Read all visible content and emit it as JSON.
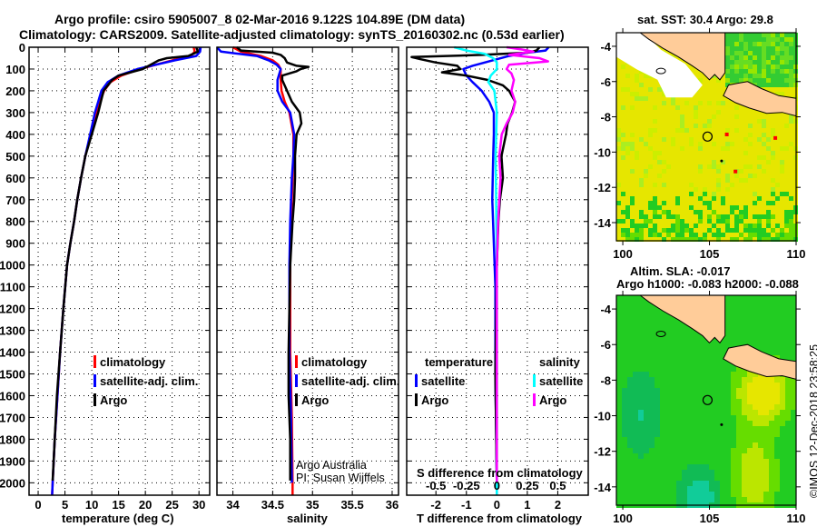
{
  "title": {
    "line1": "Argo profile: csiro 5905007_8 02-Mar-2016 9.122S 104.89E (DM data)",
    "line2": "Climatology: CARS2009. Satellite-adjusted climatology: synTS_20160302.nc (0.53d earlier)"
  },
  "colors": {
    "climatology": "#ff0000",
    "satellite": "#0000ff",
    "argo": "#000000",
    "salinity_satellite": "#00ffff",
    "salinity_argo": "#ff00ff",
    "land": "#ffcc99"
  },
  "legend_profiles": {
    "climatology": "climatology",
    "satellite": "satellite-adj. clim.",
    "argo": "Argo"
  },
  "legend_diff": {
    "temperature_title": "temperature",
    "salinity_title": "salinity",
    "satellite": "satellite",
    "argo": "Argo"
  },
  "credit": {
    "line1": "Argo Australia",
    "line2": "PI: Susan Wijffels"
  },
  "diff_top_label": "S difference from climatology",
  "timestamp": "©IMOS 12-Dec-2018 23:58:25",
  "chart_data": [
    {
      "type": "line",
      "name": "temperature",
      "xlabel": "temperature (deg C)",
      "ylabel": "depth",
      "xlim": [
        -1.7,
        32
      ],
      "ylim": [
        2057,
        0
      ],
      "xticks": [
        0,
        5,
        10,
        15,
        20,
        25,
        30
      ],
      "yticks": [
        0,
        100,
        200,
        300,
        400,
        500,
        600,
        700,
        800,
        900,
        1000,
        1100,
        1200,
        1300,
        1400,
        1500,
        1600,
        1700,
        1800,
        1900,
        2000
      ],
      "series": [
        {
          "name": "climatology",
          "color": "#ff0000",
          "depth": [
            0,
            20,
            40,
            60,
            80,
            100,
            130,
            160,
            200,
            250,
            300,
            400,
            500,
            600,
            700,
            800,
            900,
            1000,
            1200,
            1400,
            1600,
            1800,
            2000,
            2057
          ],
          "values": [
            29.0,
            29.2,
            28.5,
            25,
            22,
            19,
            15.5,
            13.5,
            12.3,
            11.5,
            10.8,
            9.8,
            8.8,
            8.0,
            7.3,
            6.7,
            6.0,
            5.4,
            4.7,
            4.1,
            3.6,
            3.1,
            2.7,
            2.6
          ]
        },
        {
          "name": "satellite-adj. clim.",
          "color": "#0000ff",
          "depth": [
            0,
            20,
            40,
            60,
            80,
            100,
            130,
            160,
            200,
            250,
            300,
            400,
            500,
            600,
            700,
            800,
            900,
            1000,
            1200,
            1400,
            1600,
            1800,
            2000,
            2057
          ],
          "values": [
            30.3,
            30.2,
            29.5,
            25.5,
            22,
            18.5,
            15,
            13,
            11.8,
            11.2,
            10.6,
            9.7,
            8.8,
            8.0,
            7.3,
            6.7,
            6.0,
            5.4,
            4.7,
            4.1,
            3.6,
            3.1,
            2.7,
            2.6
          ]
        },
        {
          "name": "Argo",
          "color": "#000000",
          "depth": [
            0,
            20,
            40,
            50,
            60,
            80,
            100,
            130,
            150,
            200,
            250,
            300,
            400,
            500,
            600,
            700,
            800,
            900,
            1000,
            1200,
            1400,
            1600,
            1800,
            1990
          ],
          "values": [
            29.5,
            29.8,
            28.0,
            24,
            22.5,
            21,
            19.5,
            15.0,
            13.8,
            12.2,
            11.7,
            11.2,
            10.0,
            8.8,
            8.0,
            7.3,
            6.7,
            6.0,
            5.4,
            4.7,
            4.1,
            3.5,
            3.1,
            2.7
          ]
        }
      ]
    },
    {
      "type": "line",
      "name": "salinity",
      "xlabel": "salinity",
      "ylabel": "depth",
      "xlim": [
        33.8,
        36.08
      ],
      "ylim": [
        2057,
        0
      ],
      "xticks": [
        34,
        34.5,
        35,
        35.5,
        36
      ],
      "series": [
        {
          "name": "climatology",
          "color": "#ff0000",
          "depth": [
            0,
            20,
            40,
            60,
            80,
            100,
            150,
            200,
            250,
            300,
            400,
            500,
            600,
            800,
            1000,
            1400,
            1700,
            2000,
            2057
          ],
          "values": [
            34.0,
            34.1,
            34.35,
            34.5,
            34.57,
            34.6,
            34.6,
            34.61,
            34.65,
            34.71,
            34.76,
            34.76,
            34.75,
            34.73,
            34.72,
            34.72,
            34.74,
            34.75,
            34.75
          ]
        },
        {
          "name": "satellite-adj. clim.",
          "color": "#0000ff",
          "depth": [
            0,
            20,
            40,
            60,
            80,
            100,
            150,
            200,
            250,
            300,
            400,
            500,
            600,
            800,
            1000,
            1400,
            1700,
            2000
          ],
          "values": [
            33.8,
            33.85,
            34.3,
            34.45,
            34.55,
            34.6,
            34.56,
            34.56,
            34.62,
            34.72,
            34.77,
            34.76,
            34.74,
            34.72,
            34.71,
            34.71,
            34.73,
            34.74
          ]
        },
        {
          "name": "Argo",
          "color": "#000000",
          "depth": [
            0,
            15,
            25,
            35,
            50,
            70,
            85,
            90,
            100,
            110,
            130,
            150,
            200,
            250,
            300,
            350,
            400,
            500,
            600,
            700,
            800,
            1000,
            1400,
            1600,
            1800,
            1990
          ],
          "values": [
            34.05,
            34.1,
            34.5,
            34.6,
            34.65,
            34.68,
            34.8,
            34.95,
            34.85,
            34.8,
            34.62,
            34.62,
            34.68,
            34.74,
            34.84,
            34.86,
            34.8,
            34.78,
            34.78,
            34.77,
            34.75,
            34.72,
            34.7,
            34.7,
            34.72,
            34.72
          ]
        }
      ]
    },
    {
      "type": "line",
      "name": "difference",
      "xlabel": "T difference from climatology",
      "ylabel": "depth",
      "xlim": [
        -2.96,
        3.0
      ],
      "ylim": [
        2057,
        0
      ],
      "xticks": [
        -2,
        -1,
        0,
        1,
        2
      ],
      "s_xticks": [
        -0.5,
        -0.25,
        0,
        0.25,
        0.5
      ],
      "s_per_t": 0.25,
      "series": [
        {
          "name": "temperature satellite",
          "color": "#0000ff",
          "units": "T",
          "depth": [
            0,
            15,
            25,
            40,
            55,
            70,
            85,
            100,
            130,
            160,
            200,
            250,
            300,
            400,
            500,
            700,
            900,
            1100,
            1500,
            2000,
            2057
          ],
          "values": [
            1.7,
            1.6,
            1.0,
            0.4,
            0,
            -0.4,
            -0.8,
            -1.1,
            -1.0,
            -0.8,
            -0.5,
            -0.25,
            -0.1,
            -0.1,
            -0.12,
            -0.15,
            -0.1,
            -0.05,
            -0.05,
            0,
            0
          ]
        },
        {
          "name": "temperature Argo",
          "color": "#000000",
          "units": "T",
          "depth": [
            0,
            15,
            25,
            35,
            45,
            55,
            70,
            85,
            100,
            115,
            130,
            150,
            175,
            200,
            250,
            300,
            350,
            400,
            500,
            600,
            700,
            800,
            1000,
            1500,
            1990
          ],
          "values": [
            1.4,
            1.3,
            1.0,
            -0.5,
            -2.8,
            -2.5,
            -2.0,
            -1.3,
            -1.2,
            -1.8,
            -1.0,
            -0.3,
            0.2,
            0.4,
            0.6,
            0.5,
            0.35,
            0.3,
            0.15,
            0.2,
            0.1,
            0.05,
            0,
            -0.05,
            0
          ]
        },
        {
          "name": "salinity satellite",
          "color": "#00ffff",
          "units": "S",
          "depth": [
            0,
            15,
            30,
            50,
            70,
            100,
            130,
            160,
            200,
            300,
            500,
            1000,
            2000,
            2057
          ],
          "values": [
            -0.35,
            -0.25,
            -0.1,
            -0.03,
            0,
            0,
            -0.05,
            -0.07,
            -0.02,
            0,
            -0.01,
            0,
            0,
            0
          ]
        },
        {
          "name": "salinity Argo",
          "color": "#ff00ff",
          "units": "S",
          "depth": [
            0,
            10,
            20,
            35,
            50,
            65,
            80,
            100,
            120,
            150,
            200,
            250,
            300,
            350,
            400,
            500,
            600,
            800,
            1000,
            1500,
            2000
          ],
          "values": [
            0.08,
            0.2,
            0.3,
            0.1,
            0.35,
            0.42,
            0.1,
            0.08,
            0.12,
            0.14,
            0.12,
            0.15,
            0.13,
            0.08,
            0.04,
            0.02,
            0.03,
            0.01,
            0.0,
            0.0,
            0.0
          ]
        }
      ]
    },
    {
      "type": "heatmap",
      "name": "sst-map",
      "title": "sat. SST: 30.4 Argo: 29.8",
      "xlim": [
        99.63,
        110
      ],
      "ylim": [
        -15.03,
        -3.23
      ],
      "xticks": [
        100,
        105,
        110
      ],
      "yticks": [
        -4,
        -6,
        -8,
        -10,
        -12,
        -14
      ],
      "float_position": [
        104.89,
        -9.12
      ]
    },
    {
      "type": "heatmap",
      "name": "sla-map",
      "title": "Altim. SLA: -0.017",
      "subtitle": "Argo h1000: -0.083 h2000: -0.088",
      "xlim": [
        99.63,
        110
      ],
      "ylim": [
        -15.03,
        -3.23
      ],
      "xticks": [
        100,
        105,
        110
      ],
      "yticks": [
        -4,
        -6,
        -8,
        -10,
        -12,
        -14
      ],
      "float_position": [
        104.89,
        -9.12
      ]
    }
  ]
}
